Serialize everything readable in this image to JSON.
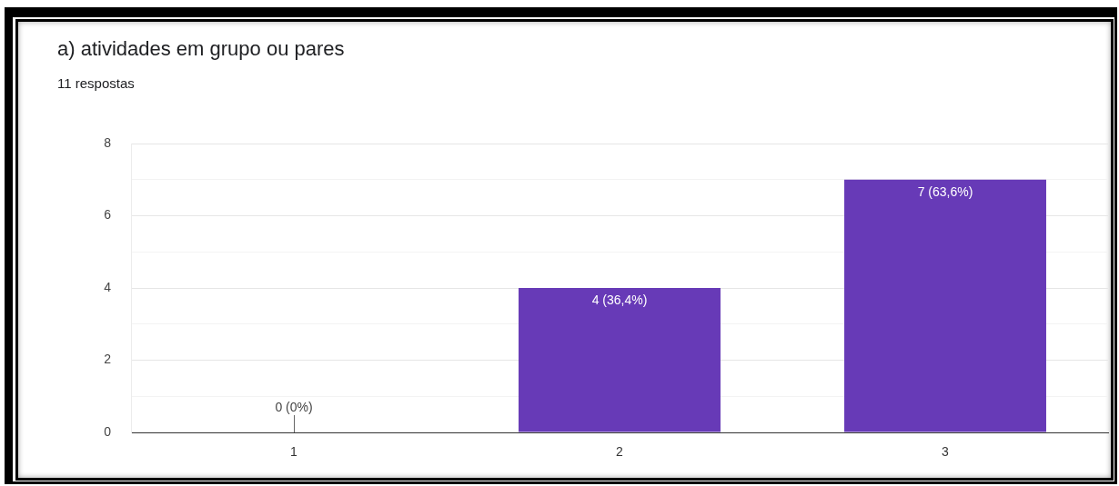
{
  "chart_data": {
    "type": "bar",
    "title": "a) atividades em grupo ou pares",
    "subtitle": "11 respostas",
    "categories": [
      "1",
      "2",
      "3"
    ],
    "values": [
      0,
      4,
      7
    ],
    "color": "#673ab7",
    "value_labels": [
      "0 (0%)",
      "4 (36,4%)",
      "7 (63,6%)"
    ],
    "ylim": [
      0,
      8
    ],
    "yticks": [
      0,
      {
        "value": 1,
        "label": null
      },
      2,
      {
        "value": 3,
        "label": null
      },
      4,
      {
        "value": 5,
        "label": null
      },
      6,
      {
        "value": 7,
        "label": null
      },
      8
    ],
    "grid": "y",
    "legend": false
  }
}
